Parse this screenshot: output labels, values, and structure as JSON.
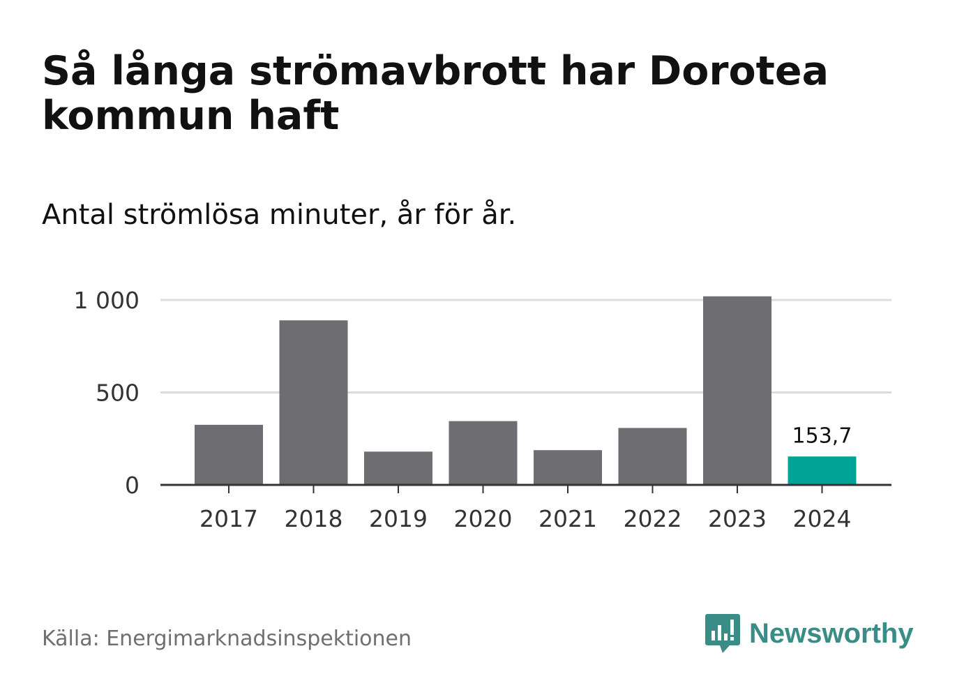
{
  "header": {
    "title": "Så långa strömavbrott har Dorotea kommun haft",
    "subtitle": "Antal strömlösa minuter, år för år."
  },
  "footer": {
    "source": "Källa: Energimarknadsinspektionen",
    "brand": "Newsworthy"
  },
  "colors": {
    "bar": "#6e6d72",
    "highlight": "#00a497",
    "grid": "#dcdcdc",
    "axis": "#333333",
    "brand": "#3a8c86"
  },
  "chart_data": {
    "type": "bar",
    "categories": [
      "2017",
      "2018",
      "2019",
      "2020",
      "2021",
      "2022",
      "2023",
      "2024"
    ],
    "values": [
      325,
      890,
      180,
      345,
      188,
      308,
      1020,
      153.7
    ],
    "highlight_index": 7,
    "highlight_label": "153,7",
    "ylim": [
      0,
      1000
    ],
    "yticks": [
      0,
      500,
      1000
    ],
    "ytick_labels": [
      "0",
      "500",
      "1 000"
    ],
    "grid": true,
    "xlabel": "",
    "ylabel": ""
  }
}
